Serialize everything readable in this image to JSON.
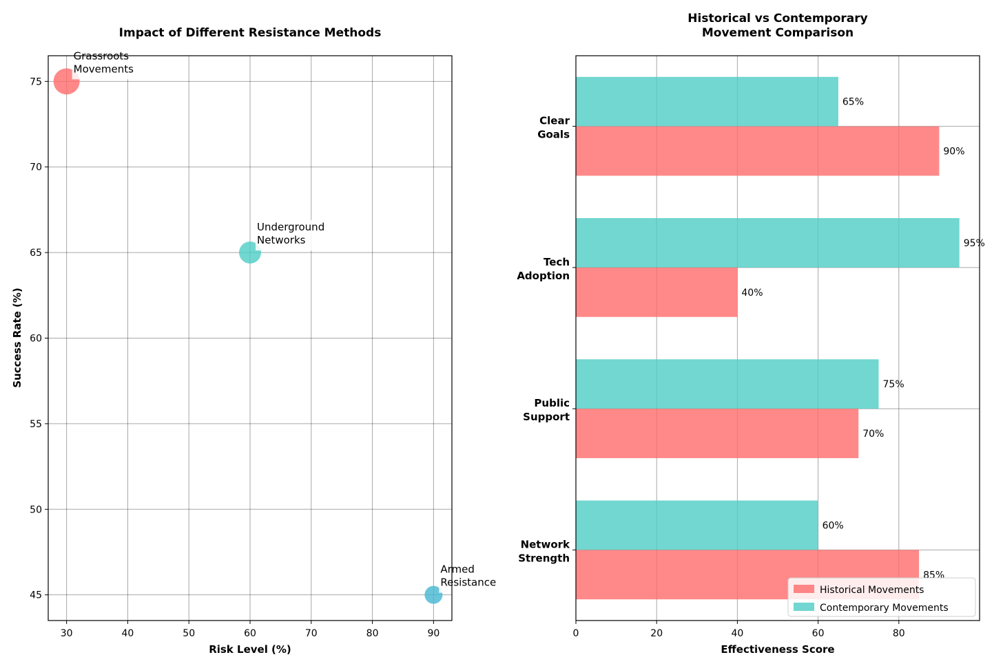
{
  "chart_data": [
    {
      "type": "scatter",
      "title": "Impact of Different Resistance Methods",
      "xlabel": "Risk Level (%)",
      "ylabel": "Success Rate (%)",
      "xlim": [
        27,
        93
      ],
      "ylim": [
        43.5,
        76.5
      ],
      "xticks": [
        30,
        40,
        50,
        60,
        70,
        80,
        90
      ],
      "yticks": [
        45,
        50,
        55,
        60,
        65,
        70,
        75
      ],
      "grid": true,
      "points": [
        {
          "label_lines": [
            "Grassroots",
            "Movements"
          ],
          "x": 30,
          "y": 75,
          "size": "large",
          "color": "#ff6b6b"
        },
        {
          "label_lines": [
            "Underground",
            "Networks"
          ],
          "x": 60,
          "y": 65,
          "size": "medium",
          "color": "#4ecdc4"
        },
        {
          "label_lines": [
            "Armed",
            "Resistance"
          ],
          "x": 90,
          "y": 45,
          "size": "small",
          "color": "#45b7d1"
        }
      ]
    },
    {
      "type": "bar",
      "orientation": "horizontal",
      "title_lines": [
        "Historical vs Contemporary",
        "Movement Comparison"
      ],
      "xlabel": "Effectiveness Score",
      "xlim": [
        0,
        100
      ],
      "xticks": [
        0,
        20,
        40,
        60,
        80
      ],
      "grid": true,
      "categories": [
        {
          "lines": [
            "Clear",
            "Goals"
          ]
        },
        {
          "lines": [
            "Tech",
            "Adoption"
          ]
        },
        {
          "lines": [
            "Public",
            "Support"
          ]
        },
        {
          "lines": [
            "Network",
            "Strength"
          ]
        }
      ],
      "series": [
        {
          "name": "Historical Movements",
          "color": "#ff6b6b",
          "values": [
            90,
            40,
            70,
            85
          ],
          "value_labels": [
            "90%",
            "40%",
            "70%",
            "85%"
          ]
        },
        {
          "name": "Contemporary Movements",
          "color": "#4ecdc4",
          "values": [
            65,
            95,
            75,
            60
          ],
          "value_labels": [
            "65%",
            "95%",
            "75%",
            "60%"
          ]
        }
      ],
      "legend_position": "lower-right"
    }
  ]
}
